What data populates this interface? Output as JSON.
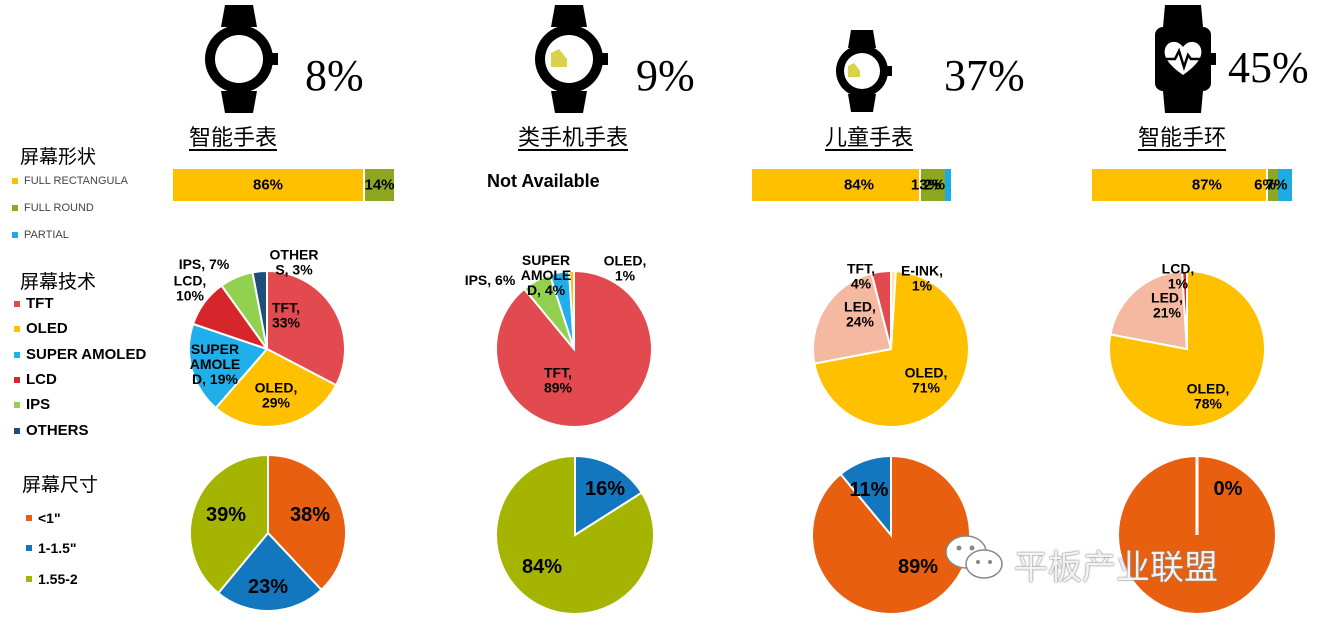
{
  "colors": {
    "full_rect": "#FFC000",
    "full_round": "#8DA720",
    "partial": "#1FAAE4",
    "tft": "#E24A4F",
    "oled": "#FFC000",
    "super_amoled": "#1FB0EB",
    "lcd": "#D6262B",
    "ips": "#92D050",
    "others": "#1F4E79",
    "led": "#F4B9A0",
    "e_ink": "#FFE8A0",
    "size_lt1": "#E8600F",
    "size_1_15": "#1277BE",
    "size_155_2": "#A5B400"
  },
  "devices": [
    {
      "title": "智能手表",
      "share": "8%",
      "icon": "watch-round-icon"
    },
    {
      "title": "类手机手表",
      "share": "9%",
      "icon": "watch-round-screen-icon"
    },
    {
      "title": "儿童手表",
      "share": "37%",
      "icon": "watch-small-icon"
    },
    {
      "title": "智能手环",
      "share": "45%",
      "icon": "band-heart-icon"
    }
  ],
  "sections": {
    "shape": {
      "title": "屏幕形状",
      "legend": [
        "FULL RECTANGULA",
        "FULL ROUND",
        "PARTIAL"
      ]
    },
    "tech": {
      "title": "屏幕技术",
      "legend": [
        "TFT",
        "OLED",
        "SUPER AMOLED",
        "LCD",
        "IPS",
        "OTHERS"
      ]
    },
    "size": {
      "title": "屏幕尺寸",
      "legend": [
        "<1\"",
        "1-1.5\"",
        "1.55-2"
      ]
    }
  },
  "not_available": "Not Available",
  "watermark": "平板产业联盟",
  "chart_data": [
    {
      "type": "bar",
      "title": "屏幕形状",
      "orientation": "horizontal-stacked-100",
      "categories": [
        "智能手表",
        "类手机手表",
        "儿童手表",
        "智能手环"
      ],
      "series": [
        {
          "name": "FULL RECTANGULA",
          "values": [
            86,
            null,
            84,
            87
          ],
          "labels": [
            "86%",
            "",
            "84%",
            "87%"
          ]
        },
        {
          "name": "FULL ROUND",
          "values": [
            14,
            null,
            13,
            6
          ],
          "labels": [
            "14%",
            "",
            "13%",
            "6%"
          ]
        },
        {
          "name": "PARTIAL",
          "values": [
            0,
            null,
            2,
            7
          ],
          "labels": [
            "",
            "",
            "2%",
            "7%"
          ]
        }
      ]
    },
    {
      "type": "pie",
      "title": "屏幕技术",
      "charts": [
        {
          "category": "智能手表",
          "slices": [
            {
              "key": "tft",
              "value": 33,
              "label": "TFT,\n33%"
            },
            {
              "key": "oled",
              "value": 29,
              "label": "OLED,\n29%"
            },
            {
              "key": "super_amoled",
              "value": 19,
              "label": "SUPER\nAMOLE\nD, 19%"
            },
            {
              "key": "lcd",
              "value": 10,
              "label": "LCD,\n10%"
            },
            {
              "key": "ips",
              "value": 7,
              "label": "IPS, 7%"
            },
            {
              "key": "others",
              "value": 3,
              "label": "OTHER\nS, 3%"
            }
          ]
        },
        {
          "category": "类手机手表",
          "slices": [
            {
              "key": "tft",
              "value": 89,
              "label": "TFT,\n89%"
            },
            {
              "key": "ips",
              "value": 6,
              "label": "IPS, 6%"
            },
            {
              "key": "super_amoled",
              "value": 4,
              "label": "SUPER\nAMOLE\nD, 4%"
            },
            {
              "key": "oled",
              "value": 1,
              "label": "OLED,\n1%"
            }
          ]
        },
        {
          "category": "儿童手表",
          "slices": [
            {
              "key": "e_ink",
              "value": 1,
              "label": "E-INK,\n1%"
            },
            {
              "key": "oled",
              "value": 71,
              "label": "OLED,\n71%"
            },
            {
              "key": "led",
              "value": 24,
              "label": "LED,\n24%"
            },
            {
              "key": "tft",
              "value": 4,
              "label": "TFT,\n4%"
            }
          ]
        },
        {
          "category": "智能手环",
          "slices": [
            {
              "key": "oled",
              "value": 78,
              "label": "OLED,\n78%"
            },
            {
              "key": "led",
              "value": 21,
              "label": "LED,\n21%"
            },
            {
              "key": "lcd",
              "value": 1,
              "label": "LCD,\n1%"
            }
          ]
        }
      ]
    },
    {
      "type": "pie",
      "title": "屏幕尺寸",
      "charts": [
        {
          "category": "智能手表",
          "slices": [
            {
              "key": "size_lt1",
              "value": 38,
              "label": "38%"
            },
            {
              "key": "size_1_15",
              "value": 23,
              "label": "23%"
            },
            {
              "key": "size_155_2",
              "value": 39,
              "label": "39%"
            }
          ]
        },
        {
          "category": "类手机手表",
          "slices": [
            {
              "key": "size_1_15",
              "value": 16,
              "label": "16%"
            },
            {
              "key": "size_155_2",
              "value": 84,
              "label": "84%"
            }
          ]
        },
        {
          "category": "儿童手表",
          "slices": [
            {
              "key": "size_lt1",
              "value": 89,
              "label": "89%"
            },
            {
              "key": "size_1_15",
              "value": 11,
              "label": "11%"
            }
          ]
        },
        {
          "category": "智能手环",
          "slices": [
            {
              "key": "size_lt1",
              "value": 100,
              "label": ""
            },
            {
              "key": "size_1_15",
              "value": 0,
              "label": "0%"
            }
          ]
        }
      ]
    }
  ]
}
